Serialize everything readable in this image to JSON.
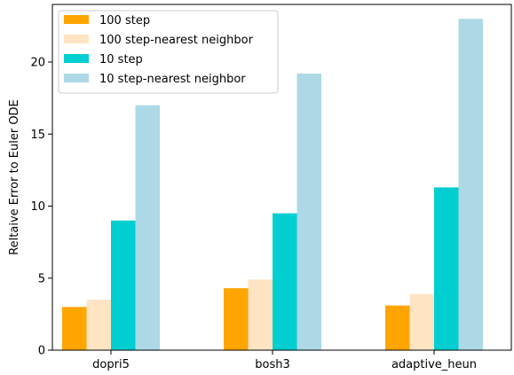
{
  "chart_data": {
    "type": "bar",
    "title": "",
    "xlabel": "",
    "ylabel": "Reltaive Error to Euler ODE",
    "categories": [
      "dopri5",
      "bosh3",
      "adaptive_heun"
    ],
    "ylim": [
      0,
      24
    ],
    "yticks": [
      0,
      5,
      10,
      15,
      20
    ],
    "legend_position": "top-left",
    "grid": false,
    "series": [
      {
        "name": "100 step",
        "color": "#FFA500",
        "values": [
          3.0,
          4.3,
          3.1
        ]
      },
      {
        "name": "100 step-nearest neighbor",
        "color": "#FFE4C4",
        "values": [
          3.5,
          4.9,
          3.9
        ]
      },
      {
        "name": "10 step",
        "color": "#00CED1",
        "values": [
          9.0,
          9.5,
          11.3
        ]
      },
      {
        "name": "10 step-nearest neighbor",
        "color": "#ADD8E6",
        "values": [
          17.0,
          19.2,
          23.0
        ]
      }
    ]
  }
}
